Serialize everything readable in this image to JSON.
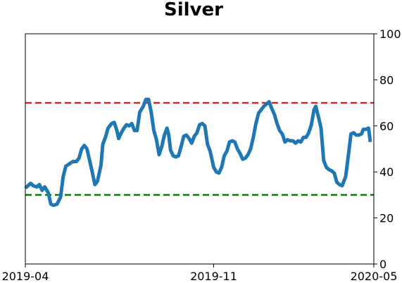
{
  "chart_data": {
    "type": "line",
    "title": "Silver",
    "xlabel": "",
    "ylabel": "",
    "ylim": [
      0,
      100
    ],
    "yticks": [
      0,
      20,
      40,
      60,
      80,
      100
    ],
    "y_axis_side": "right",
    "xlim": [
      "2019-04-01",
      "2020-05-01"
    ],
    "xticks": [
      {
        "date": "2019-04-01",
        "label": "2019-04"
      },
      {
        "date": "2019-11-01",
        "label": "2019-11"
      },
      {
        "date": "2020-05-01",
        "label": "2020-05"
      }
    ],
    "grid": false,
    "reference_lines": [
      {
        "y": 70,
        "color": "#d62728",
        "style": "dashed"
      },
      {
        "y": 30,
        "color": "#008000",
        "style": "dashed"
      }
    ],
    "series": [
      {
        "color": "#1f77b4",
        "points": [
          [
            "2019-04-01",
            33
          ],
          [
            "2019-04-04",
            34
          ],
          [
            "2019-04-07",
            35
          ],
          [
            "2019-04-10",
            34
          ],
          [
            "2019-04-14",
            33.5
          ],
          [
            "2019-04-17",
            34.5
          ],
          [
            "2019-04-20",
            32
          ],
          [
            "2019-04-23",
            33.5
          ],
          [
            "2019-04-27",
            31
          ],
          [
            "2019-04-30",
            26
          ],
          [
            "2019-05-03",
            25.5
          ],
          [
            "2019-05-07",
            26
          ],
          [
            "2019-05-11",
            29
          ],
          [
            "2019-05-14",
            38
          ],
          [
            "2019-05-17",
            42.5
          ],
          [
            "2019-05-21",
            43.5
          ],
          [
            "2019-05-25",
            44.5
          ],
          [
            "2019-05-29",
            44.5
          ],
          [
            "2019-06-01",
            46
          ],
          [
            "2019-06-04",
            50
          ],
          [
            "2019-06-07",
            51.5
          ],
          [
            "2019-06-10",
            50
          ],
          [
            "2019-06-13",
            45
          ],
          [
            "2019-06-16",
            40
          ],
          [
            "2019-06-19",
            34.5
          ],
          [
            "2019-06-22",
            36
          ],
          [
            "2019-06-26",
            43
          ],
          [
            "2019-06-28",
            52
          ],
          [
            "2019-07-01",
            55
          ],
          [
            "2019-07-04",
            59
          ],
          [
            "2019-07-08",
            61
          ],
          [
            "2019-07-11",
            61.5
          ],
          [
            "2019-07-14",
            58
          ],
          [
            "2019-07-16",
            54.5
          ],
          [
            "2019-07-19",
            57
          ],
          [
            "2019-07-22",
            59
          ],
          [
            "2019-07-25",
            60.5
          ],
          [
            "2019-07-28",
            60
          ],
          [
            "2019-07-31",
            61
          ],
          [
            "2019-08-03",
            58
          ],
          [
            "2019-08-06",
            58
          ],
          [
            "2019-08-09",
            66
          ],
          [
            "2019-08-13",
            68.5
          ],
          [
            "2019-08-16",
            71.5
          ],
          [
            "2019-08-19",
            71.5
          ],
          [
            "2019-08-22",
            66
          ],
          [
            "2019-08-25",
            58
          ],
          [
            "2019-08-28",
            54
          ],
          [
            "2019-08-31",
            47.5
          ],
          [
            "2019-09-03",
            51
          ],
          [
            "2019-09-06",
            56
          ],
          [
            "2019-09-09",
            59
          ],
          [
            "2019-09-11",
            56
          ],
          [
            "2019-09-13",
            49.5
          ],
          [
            "2019-09-16",
            47
          ],
          [
            "2019-09-19",
            46.5
          ],
          [
            "2019-09-22",
            47
          ],
          [
            "2019-09-25",
            51
          ],
          [
            "2019-09-28",
            55.5
          ],
          [
            "2019-10-01",
            56
          ],
          [
            "2019-10-04",
            54.5
          ],
          [
            "2019-10-07",
            52.5
          ],
          [
            "2019-10-10",
            55.5
          ],
          [
            "2019-10-13",
            57
          ],
          [
            "2019-10-16",
            60.5
          ],
          [
            "2019-10-19",
            61
          ],
          [
            "2019-10-22",
            60
          ],
          [
            "2019-10-25",
            52
          ],
          [
            "2019-10-28",
            49
          ],
          [
            "2019-11-01",
            42
          ],
          [
            "2019-11-04",
            40
          ],
          [
            "2019-11-07",
            39.5
          ],
          [
            "2019-11-10",
            42
          ],
          [
            "2019-11-13",
            47
          ],
          [
            "2019-11-16",
            49
          ],
          [
            "2019-11-19",
            53
          ],
          [
            "2019-11-22",
            53.5
          ],
          [
            "2019-11-25",
            53
          ],
          [
            "2019-11-28",
            50
          ],
          [
            "2019-12-01",
            48
          ],
          [
            "2019-12-04",
            45.5
          ],
          [
            "2019-12-07",
            46
          ],
          [
            "2019-12-10",
            47.5
          ],
          [
            "2019-12-13",
            50
          ],
          [
            "2019-12-16",
            55
          ],
          [
            "2019-12-19",
            61
          ],
          [
            "2019-12-22",
            65.5
          ],
          [
            "2019-12-25",
            67
          ],
          [
            "2019-12-28",
            68.5
          ],
          [
            "2019-12-31",
            69.5
          ],
          [
            "2020-01-03",
            70.5
          ],
          [
            "2020-01-06",
            67.5
          ],
          [
            "2020-01-09",
            65
          ],
          [
            "2020-01-12",
            61
          ],
          [
            "2020-01-15",
            58
          ],
          [
            "2020-01-18",
            56.5
          ],
          [
            "2020-01-21",
            53
          ],
          [
            "2020-01-24",
            54
          ],
          [
            "2020-01-27",
            53.5
          ],
          [
            "2020-01-30",
            53.5
          ],
          [
            "2020-02-02",
            52.5
          ],
          [
            "2020-02-05",
            53.5
          ],
          [
            "2020-02-08",
            53
          ],
          [
            "2020-02-11",
            55
          ],
          [
            "2020-02-14",
            55
          ],
          [
            "2020-02-17",
            57
          ],
          [
            "2020-02-20",
            60.5
          ],
          [
            "2020-02-23",
            67
          ],
          [
            "2020-02-25",
            68.5
          ],
          [
            "2020-02-28",
            64
          ],
          [
            "2020-03-02",
            59
          ],
          [
            "2020-03-05",
            45
          ],
          [
            "2020-03-08",
            42
          ],
          [
            "2020-03-11",
            41
          ],
          [
            "2020-03-14",
            40.5
          ],
          [
            "2020-03-17",
            39.5
          ],
          [
            "2020-03-20",
            35.5
          ],
          [
            "2020-03-23",
            34.5
          ],
          [
            "2020-03-26",
            34
          ],
          [
            "2020-03-30",
            38
          ],
          [
            "2020-04-02",
            47
          ],
          [
            "2020-04-05",
            56.5
          ],
          [
            "2020-04-08",
            57
          ],
          [
            "2020-04-11",
            56
          ],
          [
            "2020-04-14",
            56
          ],
          [
            "2020-04-17",
            56.5
          ],
          [
            "2020-04-19",
            58.5
          ],
          [
            "2020-04-22",
            58.5
          ],
          [
            "2020-04-25",
            59
          ],
          [
            "2020-04-27",
            53
          ]
        ]
      }
    ]
  }
}
